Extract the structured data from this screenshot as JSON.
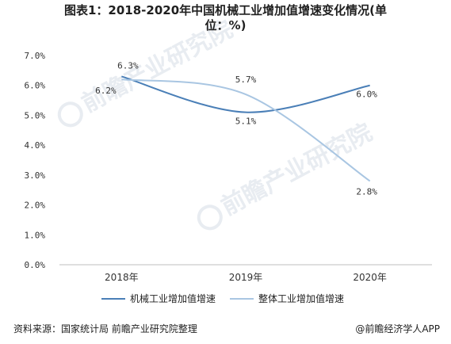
{
  "title_line1": "图表1：2018-2020年中国机械工业增加值增速变化情况(单",
  "title_line2": "位：%)",
  "watermark": "前瞻产业研究院",
  "source": "资料来源：国家统计局 前瞻产业研究院整理",
  "brand": "@前瞻经济学人APP",
  "colors": {
    "series1": "#4a7fb7",
    "series2": "#a9c6e2",
    "axis_text": "#333333",
    "grid": "#e6e6e6"
  },
  "chart_data": {
    "type": "line",
    "categories": [
      "2018年",
      "2019年",
      "2020年"
    ],
    "ylim": [
      0.0,
      7.0
    ],
    "yticks": [
      "0.0%",
      "1.0%",
      "2.0%",
      "3.0%",
      "4.0%",
      "5.0%",
      "6.0%",
      "7.0%"
    ],
    "grid": false,
    "legend_position": "bottom",
    "smooth": true,
    "series": [
      {
        "name": "机械工业增加值增速",
        "values": [
          6.3,
          5.1,
          6.0
        ],
        "labels": [
          "6.3%",
          "5.1%",
          "6.0%"
        ]
      },
      {
        "name": "整体工业增加值增速",
        "values": [
          6.2,
          5.7,
          2.8
        ],
        "labels": [
          "6.2%",
          "5.7%",
          "2.8%"
        ]
      }
    ]
  }
}
